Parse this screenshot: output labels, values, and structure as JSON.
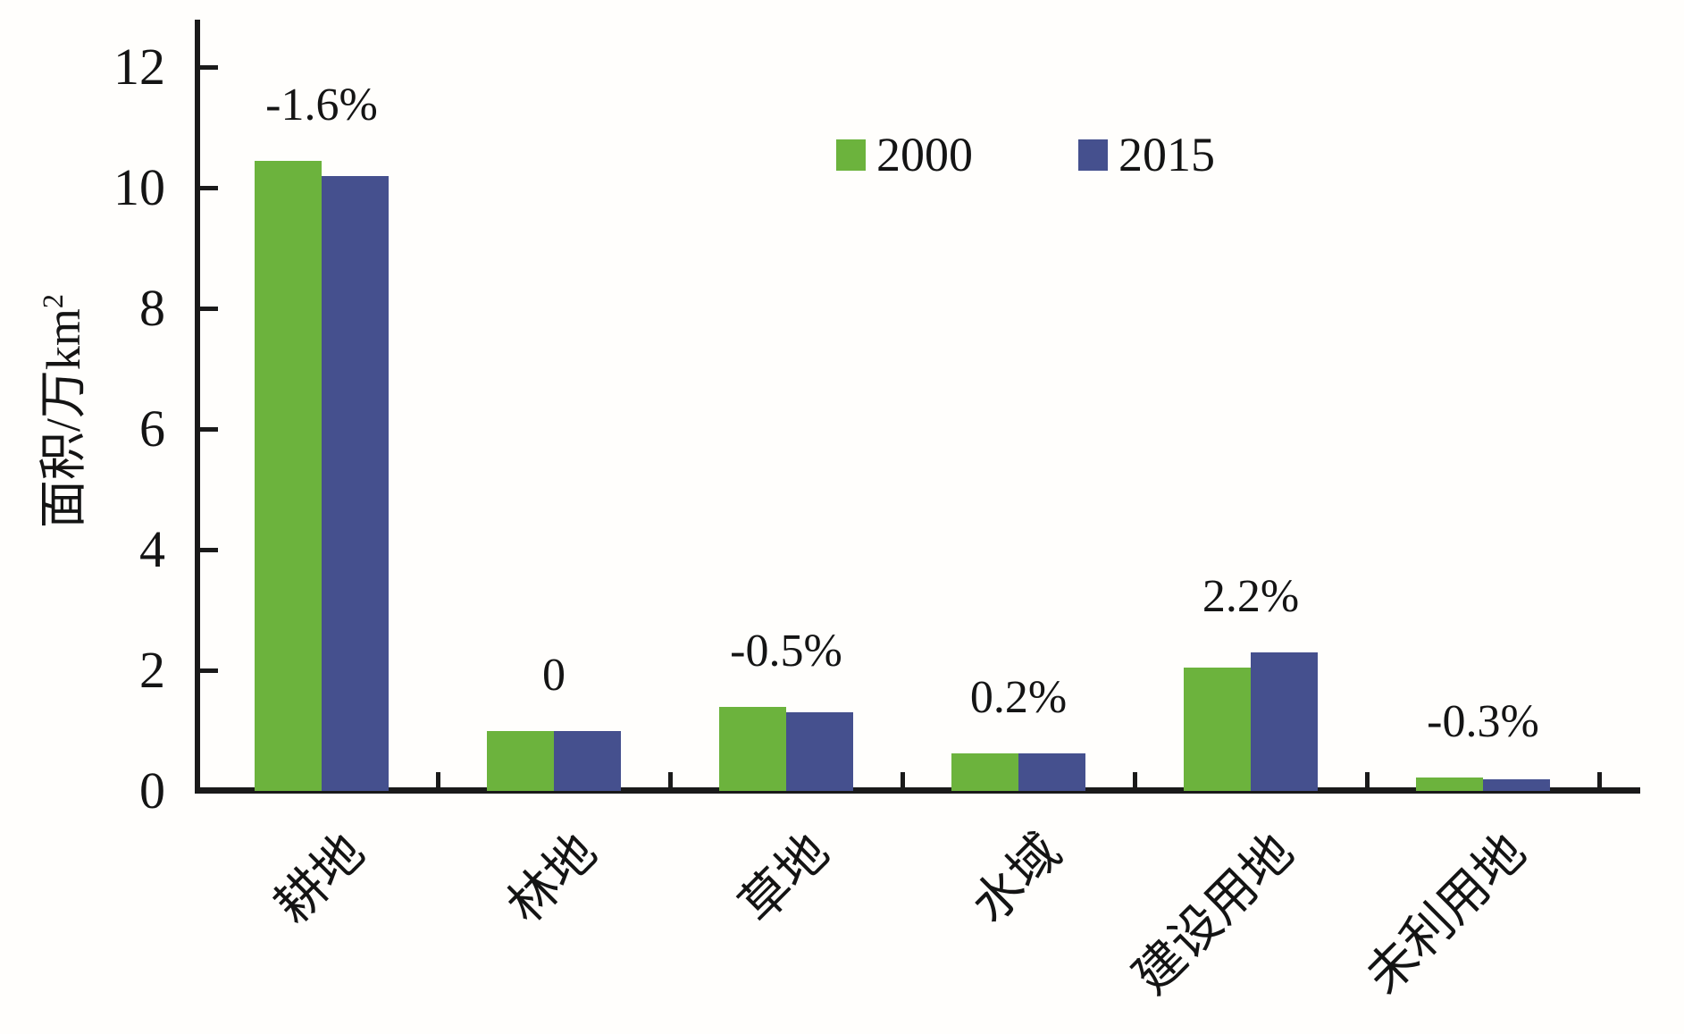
{
  "chart_data": {
    "type": "bar",
    "title": "",
    "categories": [
      "耕地",
      "林地",
      "草地",
      "水域",
      "建设用地",
      "未利用地"
    ],
    "series": [
      {
        "name": "2000",
        "color": "#6cb33d",
        "values": [
          10.45,
          1.0,
          1.4,
          0.62,
          2.05,
          0.22
        ]
      },
      {
        "name": "2015",
        "color": "#45508e",
        "values": [
          10.2,
          1.0,
          1.3,
          0.62,
          2.3,
          0.19
        ]
      }
    ],
    "change_labels": [
      "-1.6%",
      "0",
      "-0.5%",
      "0.2%",
      "2.2%",
      "-0.3%"
    ],
    "ylabel": "面积/万km²",
    "yticks": [
      0,
      2,
      4,
      6,
      8,
      10,
      12
    ],
    "ylim": [
      0,
      12.8
    ],
    "grid": false,
    "legend_position": "top-center"
  },
  "axis": {
    "ylabel_text": "面积/万km",
    "ylabel_sup": "2"
  },
  "legend": {
    "items": [
      {
        "label": "2000",
        "color": "#6cb33d"
      },
      {
        "label": "2015",
        "color": "#45508e"
      }
    ]
  }
}
